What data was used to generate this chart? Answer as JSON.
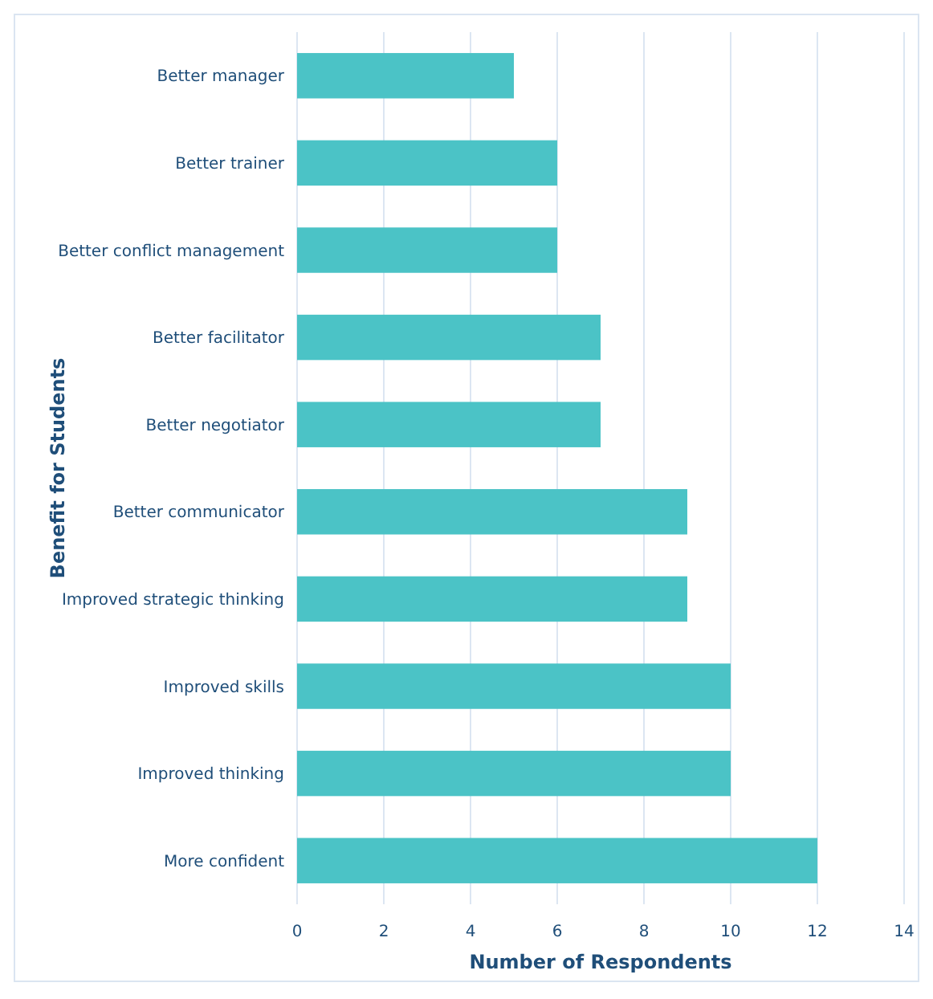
{
  "chart_data": {
    "type": "bar",
    "orientation": "horizontal",
    "xlabel": "Number of Respondents",
    "ylabel": "Benefit for Students",
    "categories": [
      "Better manager",
      "Better trainer",
      "Better conflict management",
      "Better facilitator",
      "Better negotiator",
      "Better communicator",
      "Improved strategic thinking",
      "Improved skills",
      "Improved thinking",
      "More confident"
    ],
    "values": [
      5,
      6,
      6,
      7,
      7,
      9,
      9,
      10,
      10,
      12
    ],
    "color": "#4bc3c6",
    "xlim": [
      0,
      14
    ],
    "xticks": [
      0,
      2,
      4,
      6,
      8,
      10,
      12,
      14
    ],
    "grid": "x"
  }
}
